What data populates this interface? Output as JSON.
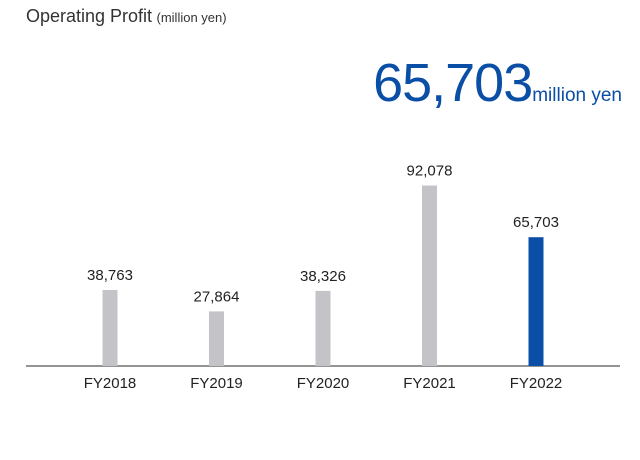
{
  "header": {
    "title": "Operating Profit",
    "title_unit": "(million yen)"
  },
  "highlight": {
    "value": "65,703",
    "unit": "million yen",
    "color": "#0a4ea5"
  },
  "chart_data": {
    "type": "bar",
    "categories": [
      "FY2018",
      "FY2019",
      "FY2020",
      "FY2021",
      "FY2022"
    ],
    "values": [
      38763,
      27864,
      38326,
      92078,
      65703
    ],
    "value_labels": [
      "38,763",
      "27,864",
      "38,326",
      "92,078",
      "65,703"
    ],
    "title": "Operating Profit",
    "xlabel": "",
    "ylabel": "",
    "ylim": [
      0,
      100000
    ],
    "grid": false,
    "bar_color": "#c4c4c8",
    "highlight_color": "#0a4ea5",
    "highlight_index": 4
  }
}
